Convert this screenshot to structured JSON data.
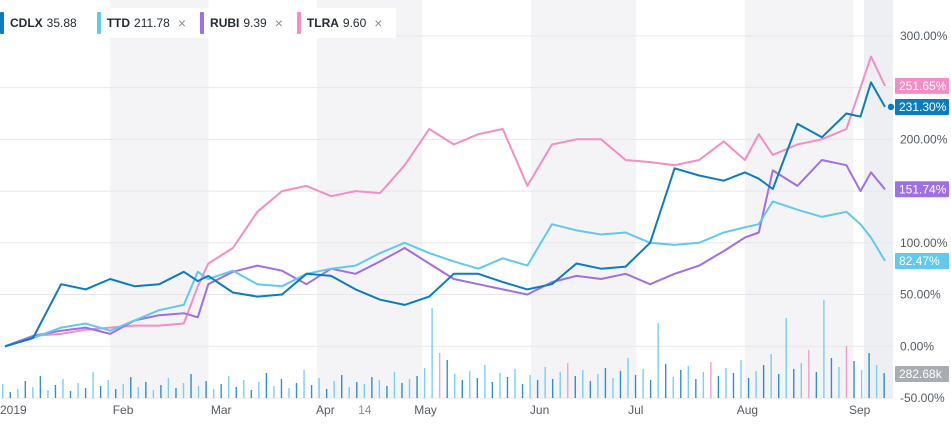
{
  "chart_data": {
    "type": "line",
    "title": "",
    "xlabel": "",
    "ylabel": "",
    "ylim": [
      -50,
      325
    ],
    "grid": true,
    "legend_position": "top-left",
    "x_tick_labels": [
      "2019",
      "Feb",
      "Mar",
      "Apr",
      "14",
      "May",
      "Jun",
      "Jul",
      "Aug",
      "Sep"
    ],
    "y_tick_labels": [
      "300.00%",
      "250.00%",
      "200.00%",
      "150.00%",
      "100.00%",
      "50.00%",
      "0.00%",
      "-50.00%"
    ],
    "y_tick_values": [
      300,
      250,
      200,
      150,
      100,
      50,
      0,
      -50
    ],
    "x": [
      "2019-01-02",
      "2019-01-10",
      "2019-01-18",
      "2019-01-25",
      "2019-02-01",
      "2019-02-08",
      "2019-02-15",
      "2019-02-22",
      "2019-02-26",
      "2019-03-01",
      "2019-03-08",
      "2019-03-15",
      "2019-03-22",
      "2019-03-29",
      "2019-04-05",
      "2019-04-12",
      "2019-04-19",
      "2019-04-26",
      "2019-05-03",
      "2019-05-10",
      "2019-05-17",
      "2019-05-24",
      "2019-05-31",
      "2019-06-07",
      "2019-06-14",
      "2019-06-21",
      "2019-06-28",
      "2019-07-05",
      "2019-07-12",
      "2019-07-19",
      "2019-07-26",
      "2019-08-01",
      "2019-08-05",
      "2019-08-09",
      "2019-08-16",
      "2019-08-23",
      "2019-08-30",
      "2019-09-03",
      "2019-09-06",
      "2019-09-10"
    ],
    "series": [
      {
        "name": "CDLX",
        "price": "35.88",
        "color": "#0c7cc0",
        "last_label": "231.30%",
        "values": [
          0,
          8,
          60,
          55,
          65,
          58,
          60,
          72,
          63,
          68,
          52,
          48,
          50,
          70,
          68,
          55,
          45,
          40,
          48,
          70,
          70,
          62,
          55,
          60,
          80,
          75,
          77,
          100,
          172,
          165,
          160,
          168,
          162,
          152,
          215,
          202,
          225,
          222,
          255,
          231.3
        ]
      },
      {
        "name": "TTD",
        "price": "211.78",
        "color": "#62c8ee",
        "last_label": "82.47%",
        "values": [
          0,
          8,
          18,
          22,
          15,
          25,
          35,
          40,
          72,
          65,
          73,
          60,
          58,
          70,
          75,
          78,
          90,
          100,
          90,
          82,
          75,
          85,
          78,
          118,
          112,
          108,
          110,
          100,
          98,
          100,
          110,
          115,
          118,
          140,
          132,
          125,
          130,
          118,
          105,
          82.47
        ]
      },
      {
        "name": "RUBI",
        "price": "9.39",
        "color": "#9e70e4",
        "last_label": "151.74%",
        "values": [
          0,
          10,
          15,
          18,
          12,
          25,
          30,
          32,
          28,
          60,
          72,
          78,
          73,
          60,
          75,
          70,
          82,
          95,
          80,
          65,
          60,
          55,
          50,
          62,
          68,
          65,
          70,
          60,
          70,
          78,
          92,
          105,
          110,
          170,
          155,
          180,
          175,
          150,
          168,
          151.74
        ]
      },
      {
        "name": "TLRA",
        "price": "9.60",
        "color": "#f28ec3",
        "last_label": "251.65%",
        "values": [
          0,
          10,
          12,
          16,
          18,
          20,
          20,
          22,
          58,
          80,
          95,
          130,
          150,
          155,
          145,
          150,
          148,
          175,
          210,
          195,
          205,
          210,
          155,
          195,
          200,
          200,
          180,
          178,
          175,
          180,
          198,
          180,
          205,
          185,
          195,
          200,
          210,
          250,
          280,
          251.65
        ]
      }
    ],
    "volume_label": "282.68k",
    "volume": [
      {
        "v": 14,
        "c": "#62c8ee"
      },
      {
        "v": 6,
        "c": "#0c7cc0"
      },
      {
        "v": 9,
        "c": "#62c8ee"
      },
      {
        "v": 17,
        "c": "#0c7cc0"
      },
      {
        "v": 11,
        "c": "#62c8ee"
      },
      {
        "v": 22,
        "c": "#0c7cc0"
      },
      {
        "v": 8,
        "c": "#62c8ee"
      },
      {
        "v": 13,
        "c": "#0c7cc0"
      },
      {
        "v": 19,
        "c": "#62c8ee"
      },
      {
        "v": 7,
        "c": "#0c7cc0"
      },
      {
        "v": 15,
        "c": "#62c8ee"
      },
      {
        "v": 10,
        "c": "#0c7cc0"
      },
      {
        "v": 26,
        "c": "#62c8ee"
      },
      {
        "v": 12,
        "c": "#0c7cc0"
      },
      {
        "v": 18,
        "c": "#62c8ee"
      },
      {
        "v": 9,
        "c": "#0c7cc0"
      },
      {
        "v": 14,
        "c": "#62c8ee"
      },
      {
        "v": 21,
        "c": "#0c7cc0"
      },
      {
        "v": 11,
        "c": "#62c8ee"
      },
      {
        "v": 16,
        "c": "#0c7cc0"
      },
      {
        "v": 8,
        "c": "#62c8ee"
      },
      {
        "v": 13,
        "c": "#0c7cc0"
      },
      {
        "v": 20,
        "c": "#62c8ee"
      },
      {
        "v": 10,
        "c": "#0c7cc0"
      },
      {
        "v": 15,
        "c": "#62c8ee"
      },
      {
        "v": 24,
        "c": "#0c7cc0"
      },
      {
        "v": 12,
        "c": "#62c8ee"
      },
      {
        "v": 17,
        "c": "#0c7cc0"
      },
      {
        "v": 9,
        "c": "#62c8ee"
      },
      {
        "v": 14,
        "c": "#0c7cc0"
      },
      {
        "v": 22,
        "c": "#62c8ee"
      },
      {
        "v": 11,
        "c": "#0c7cc0"
      },
      {
        "v": 18,
        "c": "#62c8ee"
      },
      {
        "v": 8,
        "c": "#0c7cc0"
      },
      {
        "v": 16,
        "c": "#62c8ee"
      },
      {
        "v": 25,
        "c": "#0c7cc0"
      },
      {
        "v": 12,
        "c": "#62c8ee"
      },
      {
        "v": 19,
        "c": "#0c7cc0"
      },
      {
        "v": 10,
        "c": "#62c8ee"
      },
      {
        "v": 15,
        "c": "#0c7cc0"
      },
      {
        "v": 28,
        "c": "#62c8ee"
      },
      {
        "v": 13,
        "c": "#0c7cc0"
      },
      {
        "v": 20,
        "c": "#62c8ee"
      },
      {
        "v": 9,
        "c": "#0c7cc0"
      },
      {
        "v": 17,
        "c": "#62c8ee"
      },
      {
        "v": 23,
        "c": "#0c7cc0"
      },
      {
        "v": 11,
        "c": "#62c8ee"
      },
      {
        "v": 16,
        "c": "#0c7cc0"
      },
      {
        "v": 14,
        "c": "#62c8ee"
      },
      {
        "v": 21,
        "c": "#0c7cc0"
      },
      {
        "v": 18,
        "c": "#62c8ee"
      },
      {
        "v": 12,
        "c": "#0c7cc0"
      },
      {
        "v": 26,
        "c": "#62c8ee"
      },
      {
        "v": 15,
        "c": "#0c7cc0"
      },
      {
        "v": 19,
        "c": "#62c8ee"
      },
      {
        "v": 22,
        "c": "#0c7cc0"
      },
      {
        "v": 30,
        "c": "#62c8ee"
      },
      {
        "v": 90,
        "c": "#62c8ee"
      },
      {
        "v": 45,
        "c": "#f28ec3"
      },
      {
        "v": 38,
        "c": "#0c7cc0"
      },
      {
        "v": 24,
        "c": "#62c8ee"
      },
      {
        "v": 18,
        "c": "#0c7cc0"
      },
      {
        "v": 27,
        "c": "#62c8ee"
      },
      {
        "v": 20,
        "c": "#0c7cc0"
      },
      {
        "v": 33,
        "c": "#62c8ee"
      },
      {
        "v": 16,
        "c": "#0c7cc0"
      },
      {
        "v": 25,
        "c": "#62c8ee"
      },
      {
        "v": 21,
        "c": "#0c7cc0"
      },
      {
        "v": 29,
        "c": "#62c8ee"
      },
      {
        "v": 14,
        "c": "#0c7cc0"
      },
      {
        "v": 23,
        "c": "#62c8ee"
      },
      {
        "v": 18,
        "c": "#0c7cc0"
      },
      {
        "v": 31,
        "c": "#62c8ee"
      },
      {
        "v": 19,
        "c": "#0c7cc0"
      },
      {
        "v": 26,
        "c": "#62c8ee"
      },
      {
        "v": 35,
        "c": "#f28ec3"
      },
      {
        "v": 22,
        "c": "#0c7cc0"
      },
      {
        "v": 28,
        "c": "#62c8ee"
      },
      {
        "v": 17,
        "c": "#0c7cc0"
      },
      {
        "v": 24,
        "c": "#62c8ee"
      },
      {
        "v": 30,
        "c": "#0c7cc0"
      },
      {
        "v": 20,
        "c": "#62c8ee"
      },
      {
        "v": 27,
        "c": "#0c7cc0"
      },
      {
        "v": 40,
        "c": "#62c8ee"
      },
      {
        "v": 23,
        "c": "#0c7cc0"
      },
      {
        "v": 29,
        "c": "#62c8ee"
      },
      {
        "v": 18,
        "c": "#0c7cc0"
      },
      {
        "v": 75,
        "c": "#62c8ee"
      },
      {
        "v": 34,
        "c": "#0c7cc0"
      },
      {
        "v": 21,
        "c": "#62c8ee"
      },
      {
        "v": 28,
        "c": "#0c7cc0"
      },
      {
        "v": 32,
        "c": "#62c8ee"
      },
      {
        "v": 19,
        "c": "#0c7cc0"
      },
      {
        "v": 26,
        "c": "#62c8ee"
      },
      {
        "v": 36,
        "c": "#f28ec3"
      },
      {
        "v": 22,
        "c": "#0c7cc0"
      },
      {
        "v": 30,
        "c": "#62c8ee"
      },
      {
        "v": 25,
        "c": "#0c7cc0"
      },
      {
        "v": 38,
        "c": "#62c8ee"
      },
      {
        "v": 20,
        "c": "#0c7cc0"
      },
      {
        "v": 27,
        "c": "#62c8ee"
      },
      {
        "v": 33,
        "c": "#0c7cc0"
      },
      {
        "v": 44,
        "c": "#62c8ee"
      },
      {
        "v": 24,
        "c": "#0c7cc0"
      },
      {
        "v": 80,
        "c": "#62c8ee"
      },
      {
        "v": 29,
        "c": "#0c7cc0"
      },
      {
        "v": 35,
        "c": "#62c8ee"
      },
      {
        "v": 48,
        "c": "#f28ec3"
      },
      {
        "v": 26,
        "c": "#0c7cc0"
      },
      {
        "v": 98,
        "c": "#62c8ee"
      },
      {
        "v": 40,
        "c": "#0c7cc0"
      },
      {
        "v": 31,
        "c": "#62c8ee"
      },
      {
        "v": 52,
        "c": "#f28ec3"
      },
      {
        "v": 37,
        "c": "#0c7cc0"
      },
      {
        "v": 28,
        "c": "#62c8ee"
      },
      {
        "v": 45,
        "c": "#0c7cc0"
      },
      {
        "v": 33,
        "c": "#62c8ee"
      },
      {
        "v": 25,
        "c": "#0c7cc0"
      }
    ]
  }
}
